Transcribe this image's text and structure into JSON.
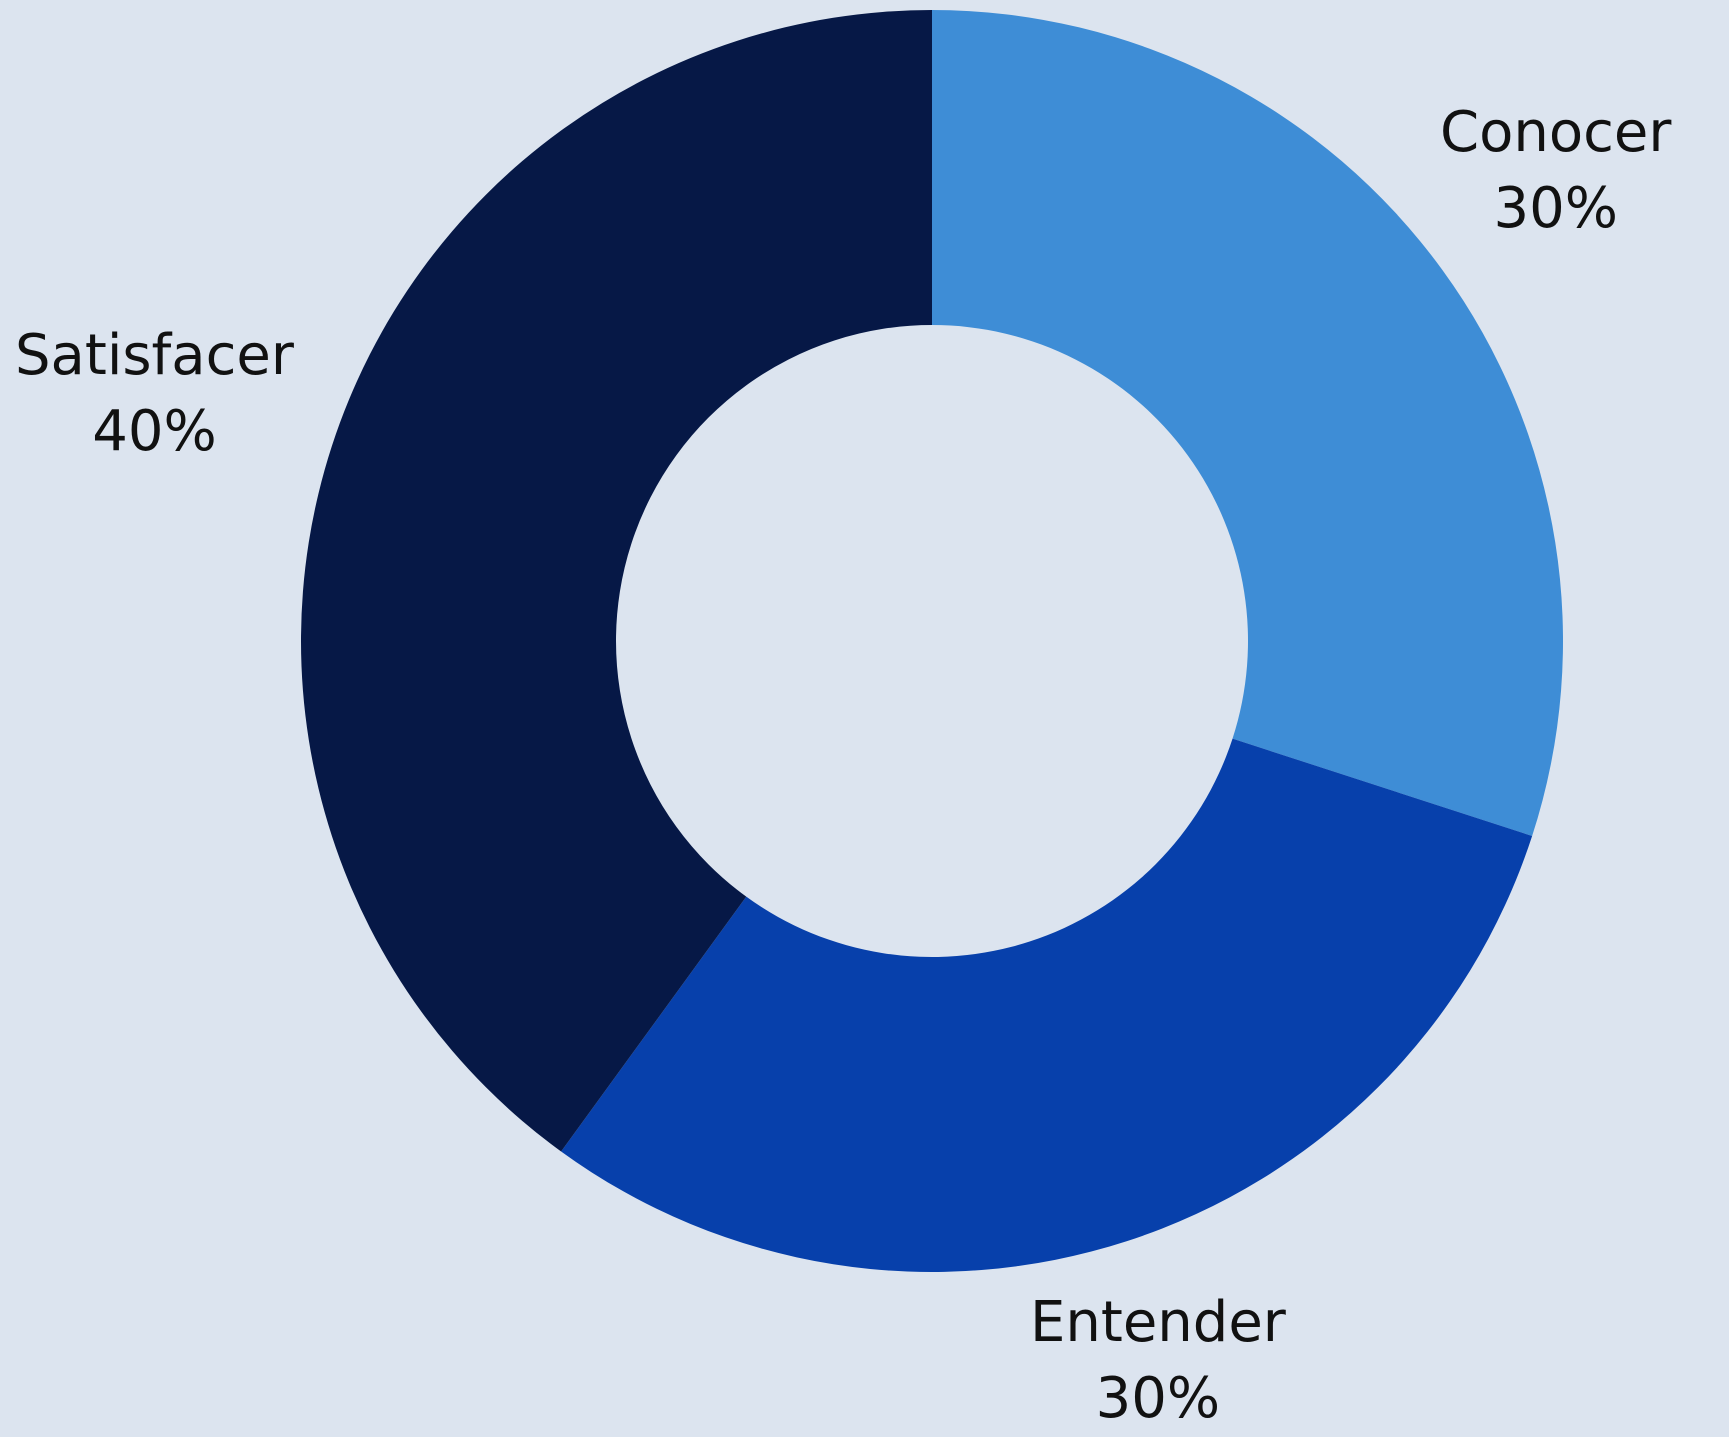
{
  "chart_data": {
    "type": "pie",
    "variant": "donut",
    "title": "",
    "categories": [
      "Conocer",
      "Entender",
      "Satisfacer"
    ],
    "values": [
      30,
      30,
      40
    ],
    "value_labels": [
      "30%",
      "30%",
      "40%"
    ],
    "colors": [
      "#3e8dd6",
      "#0740ab",
      "#061846"
    ],
    "start_angle_deg": 0,
    "direction": "clockwise",
    "legend": "none",
    "background": "#dce4ef"
  }
}
